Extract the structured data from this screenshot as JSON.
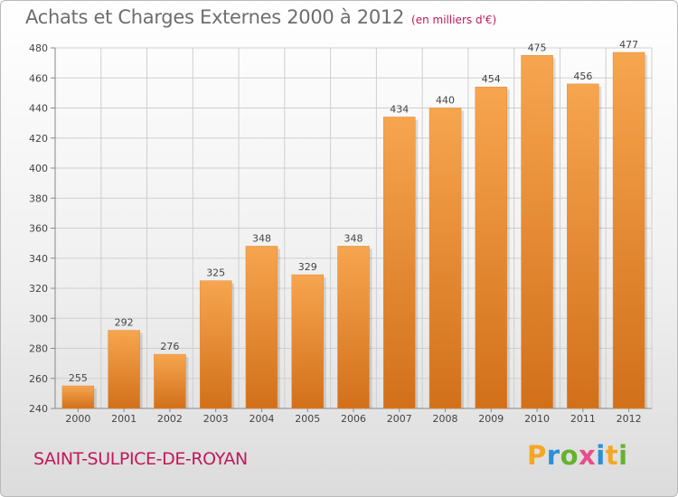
{
  "header": {
    "title": "Achats et Charges Externes 2000 à 2012",
    "subtitle": "(en milliers d'€)"
  },
  "footer": {
    "commune": "SAINT-SULPICE-DE-ROYAN",
    "logo_letters": [
      "P",
      "r",
      "o",
      "x",
      "i",
      "t",
      "i"
    ],
    "logo_colors": [
      "#f5a623",
      "#2b8fd6",
      "#66b32e",
      "#e84c8b",
      "#2b8fd6",
      "#f5a623",
      "#66b32e"
    ]
  },
  "colors": {
    "bar_top": "#f7a54f",
    "bar_bottom": "#d2701a",
    "grid": "#cfcfcf",
    "accent": "#c2185b"
  },
  "chart_data": {
    "type": "bar",
    "categories": [
      "2000",
      "2001",
      "2002",
      "2003",
      "2004",
      "2005",
      "2006",
      "2007",
      "2008",
      "2009",
      "2010",
      "2011",
      "2012"
    ],
    "values": [
      255,
      292,
      276,
      325,
      348,
      329,
      348,
      434,
      440,
      454,
      475,
      456,
      477
    ],
    "ylim": [
      240,
      480
    ],
    "yticks": [
      240,
      260,
      280,
      300,
      320,
      340,
      360,
      380,
      400,
      420,
      440,
      460,
      480
    ],
    "grid": true,
    "xlabel": "",
    "ylabel": ""
  }
}
